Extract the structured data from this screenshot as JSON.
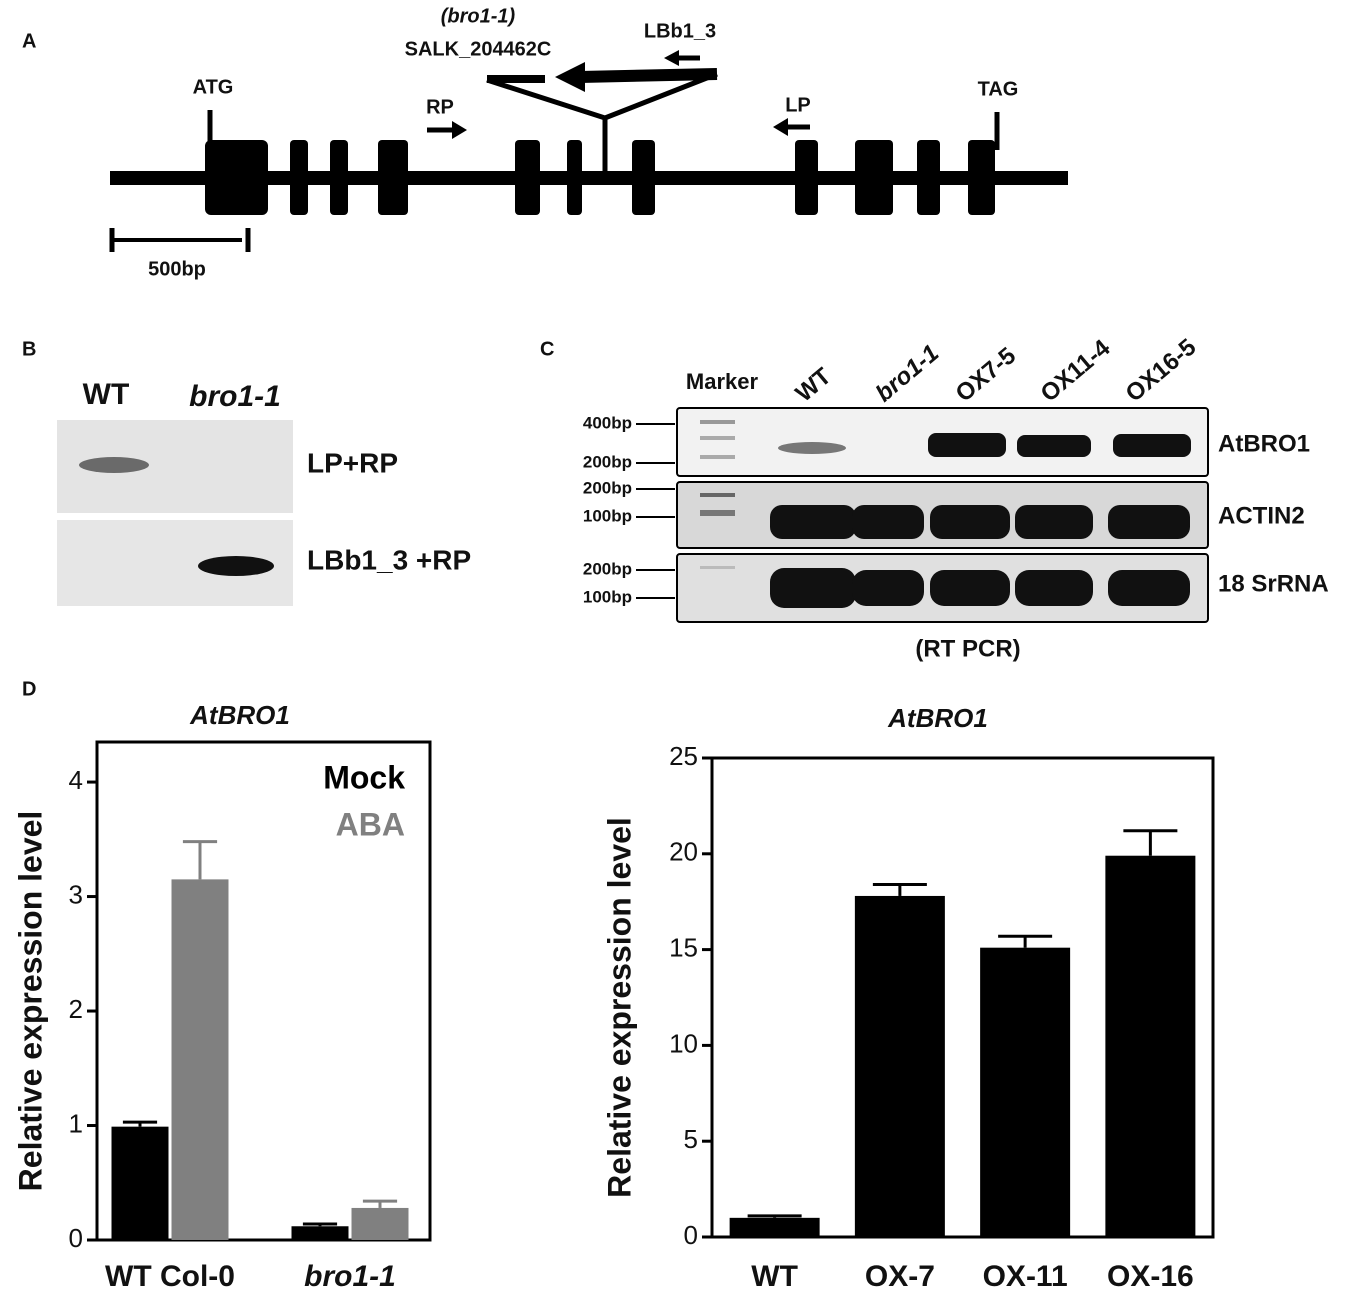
{
  "panel_a": {
    "label": "A",
    "insertion_allele": "(bro1-1)",
    "insertion_line": "SALK_204462C",
    "primer_lb": "LBb1_3",
    "start_codon": "ATG",
    "primer_rp": "RP",
    "primer_lp": "LP",
    "stop_codon": "TAG",
    "scale_bar": "500bp"
  },
  "panel_b": {
    "label": "B",
    "lanes": [
      "WT",
      "bro1-1"
    ],
    "rows": [
      "LP+RP",
      "LBb1_3 +RP"
    ]
  },
  "panel_c": {
    "label": "C",
    "lanes": [
      "Marker",
      "WT",
      "bro1-1",
      "OX7-5",
      "OX11-4",
      "OX16-5"
    ],
    "gels": [
      {
        "gene": "AtBRO1",
        "sizes": [
          "400bp",
          "200bp"
        ]
      },
      {
        "gene": "ACTIN2",
        "sizes": [
          "200bp",
          "100bp"
        ]
      },
      {
        "gene": "18 SrRNA",
        "sizes": [
          "200bp",
          "100bp"
        ]
      }
    ],
    "method": "(RT PCR)"
  },
  "panel_d": {
    "label": "D"
  },
  "chart_data": [
    {
      "type": "bar",
      "title": "AtBRO1",
      "y_label": "Relative expression level",
      "categories": [
        "WT Col-0",
        "bro1-1"
      ],
      "series": [
        {
          "name": "Mock",
          "color": "#000000",
          "values": [
            0.99,
            0.12
          ],
          "errors": [
            0.04,
            0.02
          ]
        },
        {
          "name": "ABA",
          "color": "#808080",
          "values": [
            3.15,
            0.28
          ],
          "errors": [
            0.33,
            0.06
          ]
        }
      ],
      "ylim": [
        0,
        4.35
      ],
      "yticks": [
        0,
        1,
        2,
        3,
        4
      ],
      "legend": "top-right"
    },
    {
      "type": "bar",
      "title": "AtBRO1",
      "y_label": "Relative expression level",
      "categories": [
        "WT",
        "OX-7",
        "OX-11",
        "OX-16"
      ],
      "series": [
        {
          "name": null,
          "color": "#000000",
          "values": [
            1.0,
            17.8,
            15.1,
            19.9
          ],
          "errors": [
            0.1,
            0.6,
            0.6,
            1.3
          ]
        }
      ],
      "ylim": [
        0,
        25
      ],
      "yticks": [
        0,
        5,
        10,
        15,
        20,
        25
      ]
    }
  ]
}
